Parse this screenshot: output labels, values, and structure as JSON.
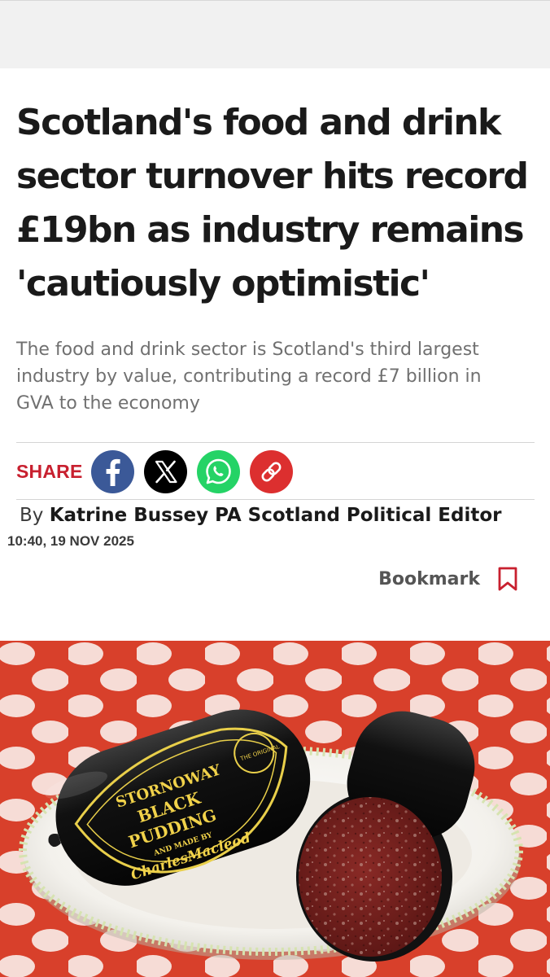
{
  "article": {
    "headline": "Scotland's food and drink sector turnover hits record £19bn as industry remains 'cautiously optimistic'",
    "standfirst": "The food and drink sector is Scotland's third largest industry by value, contributing a record £7 billion in GVA to the economy"
  },
  "share": {
    "label": "SHARE",
    "buttons": [
      {
        "icon": "facebook-icon",
        "color": "#3b5998"
      },
      {
        "icon": "x-icon",
        "color": "#000000"
      },
      {
        "icon": "whatsapp-icon",
        "color": "#25d366"
      },
      {
        "icon": "link-icon",
        "color": "#dc2f2f"
      }
    ]
  },
  "byline": {
    "prefix": "By",
    "author": "Katrine Bussey PA Scotland Political Editor",
    "timestamp": "10:40, 19 NOV 2025"
  },
  "bookmark": {
    "label": "Bookmark",
    "icon": "bookmark-icon",
    "color": "#c8202f"
  },
  "hero_image": {
    "label_lines": [
      "STORNOWAY",
      "BLACK",
      "PUDDING"
    ],
    "maker_line": "AND MADE BY",
    "brand": "CharlesMacleod",
    "seal": "THE ORIGINAL"
  },
  "colors": {
    "accent": "#c8202f",
    "top_bar": "#f1f1f1",
    "tablecloth": "#d8402b"
  }
}
